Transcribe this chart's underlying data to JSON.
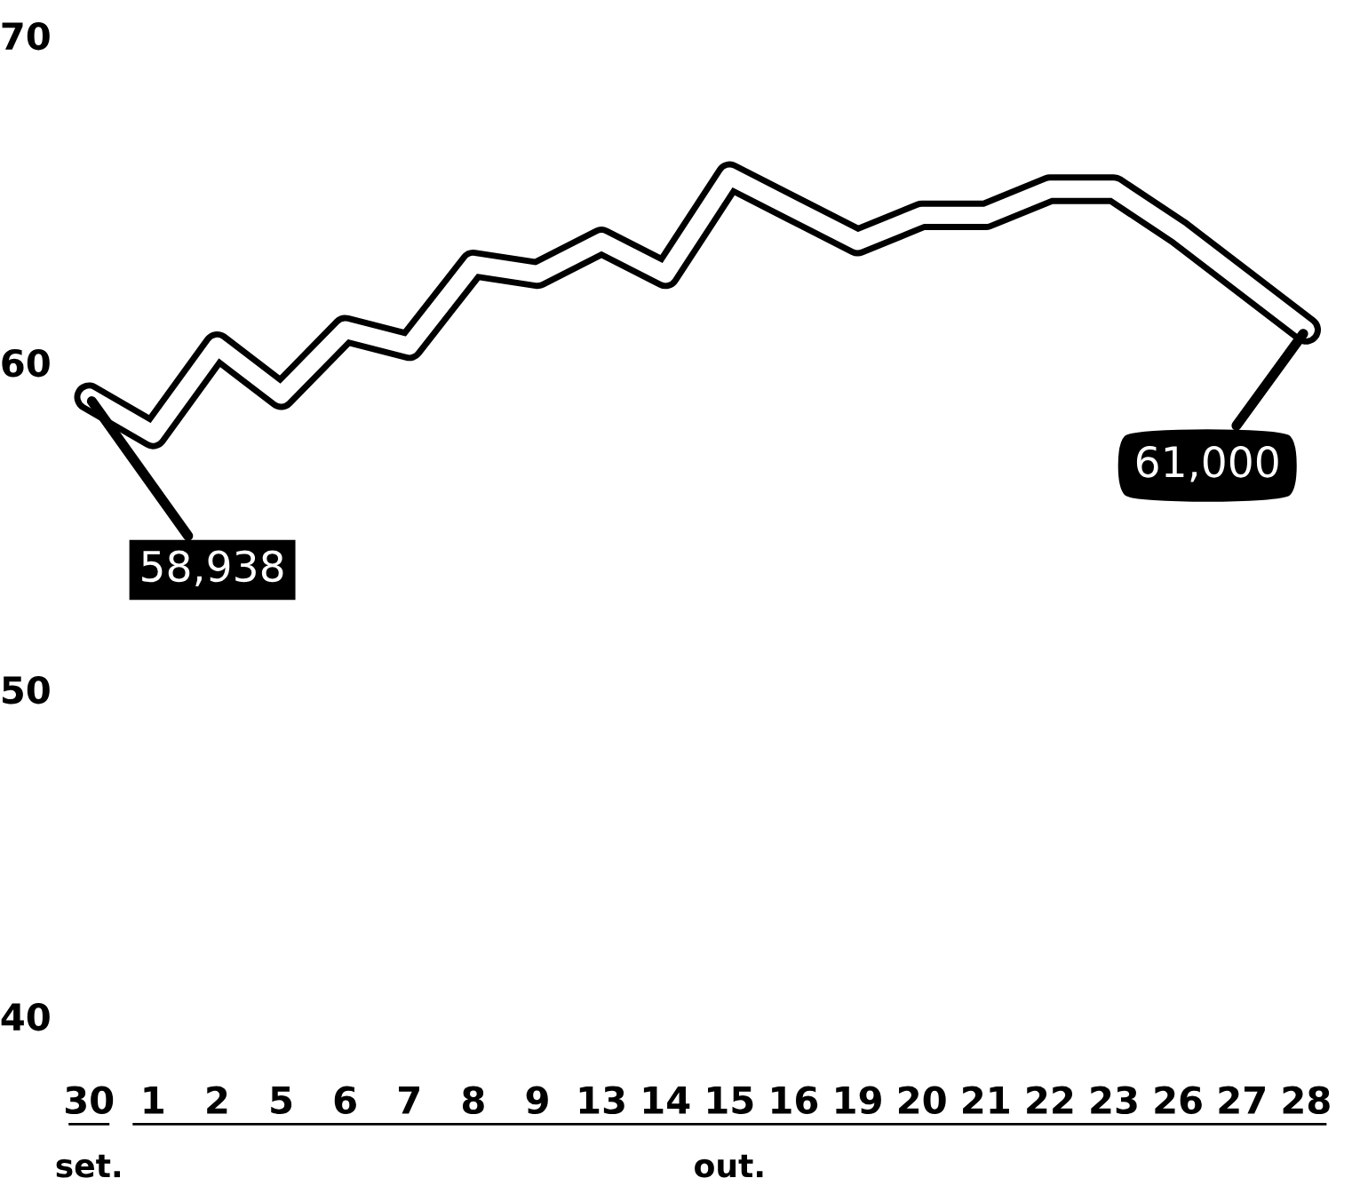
{
  "chart_data": {
    "type": "line",
    "categories": [
      "30",
      "1",
      "2",
      "5",
      "6",
      "7",
      "8",
      "9",
      "13",
      "14",
      "15",
      "16",
      "19",
      "20",
      "21",
      "22",
      "23",
      "26",
      "27",
      "28"
    ],
    "values": [
      58.938,
      57.8,
      60.5,
      59.0,
      61.0,
      60.5,
      63.0,
      62.7,
      63.7,
      62.7,
      65.7,
      64.7,
      63.7,
      64.5,
      64.5,
      65.3,
      65.3,
      64.0,
      62.5,
      61.0
    ],
    "color": "#ffffff",
    "ylim": [
      40,
      70
    ],
    "yticks": [
      40,
      50,
      60,
      70
    ],
    "annotations": [
      "set.",
      "out.",
      {
        "text": "58,938",
        "x": "30",
        "y": 58.938
      },
      {
        "text": "61,000",
        "x": "28",
        "y": 61.0
      }
    ],
    "grid": false,
    "legend": false,
    "marker": "none",
    "line_style": "solid"
  }
}
